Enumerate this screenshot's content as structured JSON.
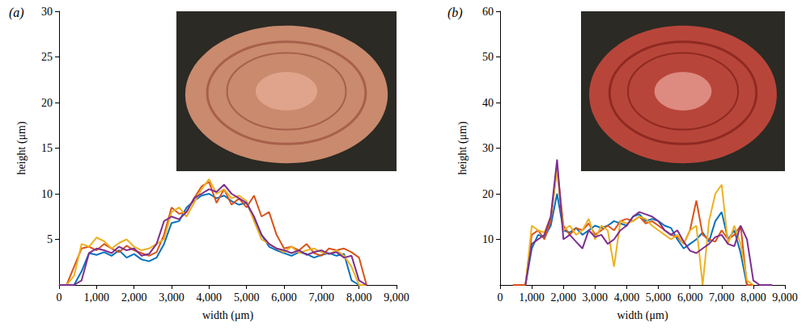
{
  "chart_data": [
    {
      "type": "line",
      "title": "(a)",
      "x_label": "width (μm)",
      "y_label": "height (μm)",
      "x": [
        0,
        200,
        400,
        600,
        800,
        1000,
        1200,
        1400,
        1600,
        1800,
        2000,
        2200,
        2400,
        2600,
        2800,
        3000,
        3200,
        3400,
        3600,
        3800,
        4000,
        4200,
        4400,
        4600,
        4800,
        5000,
        5200,
        5400,
        5600,
        5800,
        6000,
        6200,
        6400,
        6600,
        6800,
        7000,
        7200,
        7400,
        7600,
        7800,
        8000,
        8200
      ],
      "series": [
        {
          "color": "#0072BD",
          "values": [
            0,
            0,
            0,
            1.5,
            3.5,
            3.3,
            3.6,
            3.2,
            3.8,
            3.0,
            3.4,
            2.8,
            2.6,
            3.0,
            4.5,
            6.8,
            7.0,
            8.5,
            9.2,
            9.8,
            10.0,
            9.5,
            9.8,
            9.2,
            8.8,
            9.0,
            7.2,
            5.5,
            4.2,
            3.8,
            3.5,
            3.2,
            3.6,
            3.4,
            3.0,
            3.3,
            3.5,
            3.2,
            3.4,
            0.5,
            0,
            0
          ]
        },
        {
          "color": "#D95319",
          "values": [
            0,
            0,
            2.0,
            4.0,
            4.2,
            3.8,
            4.5,
            4.0,
            3.6,
            4.3,
            3.8,
            3.5,
            3.2,
            3.6,
            5.5,
            8.5,
            7.8,
            8.0,
            9.5,
            10.8,
            11.3,
            9.0,
            10.5,
            8.8,
            9.5,
            8.5,
            9.8,
            7.5,
            8.0,
            5.5,
            4.0,
            4.2,
            3.8,
            4.5,
            3.5,
            3.2,
            4.0,
            3.8,
            4.0,
            3.6,
            3.0,
            0
          ]
        },
        {
          "color": "#EDB120",
          "values": [
            0,
            0,
            1.0,
            4.5,
            4.2,
            5.2,
            4.8,
            4.0,
            4.6,
            5.0,
            4.2,
            3.8,
            4.0,
            4.5,
            5.0,
            8.0,
            8.5,
            7.5,
            9.0,
            10.5,
            11.6,
            10.0,
            10.5,
            9.5,
            9.8,
            9.2,
            7.0,
            5.0,
            4.5,
            4.0,
            3.6,
            4.2,
            3.5,
            3.8,
            4.0,
            3.6,
            3.4,
            3.8,
            3.2,
            2.0,
            0,
            0
          ]
        },
        {
          "color": "#7E2F8E",
          "values": [
            0,
            0,
            0,
            0.5,
            3.5,
            4.0,
            3.8,
            3.5,
            4.2,
            3.8,
            4.0,
            3.2,
            3.4,
            4.5,
            7.0,
            7.5,
            7.2,
            8.0,
            9.5,
            10.0,
            10.5,
            10.2,
            11.0,
            10.0,
            9.5,
            9.0,
            7.5,
            5.5,
            4.5,
            4.0,
            3.8,
            3.5,
            3.8,
            3.3,
            3.6,
            3.8,
            3.4,
            3.6,
            3.0,
            3.2,
            0.5,
            0
          ]
        }
      ],
      "xlim": [
        0,
        9000
      ],
      "xticks": [
        0,
        1000,
        2000,
        3000,
        4000,
        5000,
        6000,
        7000,
        8000,
        9000
      ],
      "ylim": [
        0,
        30
      ],
      "yticks": [
        5,
        10,
        15,
        20,
        25,
        30
      ],
      "grid": false
    },
    {
      "type": "line",
      "title": "(b)",
      "x_label": "width (μm)",
      "y_label": "height (μm)",
      "x": [
        0,
        200,
        400,
        600,
        800,
        1000,
        1200,
        1400,
        1600,
        1800,
        2000,
        2200,
        2400,
        2600,
        2800,
        3000,
        3200,
        3400,
        3600,
        3800,
        4000,
        4200,
        4400,
        4600,
        4800,
        5000,
        5200,
        5400,
        5600,
        5800,
        6000,
        6200,
        6400,
        6600,
        6800,
        7000,
        7200,
        7400,
        7600,
        7800,
        8000,
        8200,
        8400,
        8600
      ],
      "series": [
        {
          "color": "#0072BD",
          "values": [
            null,
            null,
            null,
            null,
            0,
            8,
            11,
            10.5,
            13,
            20,
            12,
            11.5,
            12.5,
            11,
            12,
            13,
            12.5,
            13,
            14,
            13.5,
            13,
            15,
            15.5,
            14,
            14.5,
            14,
            13,
            12.5,
            10,
            8,
            9,
            10,
            11.5,
            9.5,
            14,
            16,
            10,
            12,
            7,
            0,
            0,
            null,
            null,
            null
          ]
        },
        {
          "color": "#D95319",
          "values": [
            null,
            null,
            0,
            0,
            0,
            11,
            12,
            10,
            14,
            26,
            13,
            11,
            12.5,
            12,
            13.5,
            11,
            12,
            13,
            12,
            14,
            14.5,
            14,
            15,
            13.5,
            14,
            13,
            12,
            11,
            10.5,
            9,
            12,
            18.5,
            11,
            10,
            9.5,
            12,
            10,
            11,
            13,
            0,
            0,
            null,
            null,
            null
          ]
        },
        {
          "color": "#EDB120",
          "values": [
            null,
            null,
            null,
            null,
            0,
            13,
            12,
            11.5,
            15,
            25,
            12,
            13,
            11,
            12,
            14.5,
            10,
            13,
            12,
            4,
            14,
            13.5,
            14,
            15,
            14.5,
            13,
            12,
            11,
            10,
            11,
            9,
            12,
            13,
            0,
            14,
            20,
            22,
            9,
            13,
            9,
            1,
            0,
            null,
            null,
            null
          ]
        },
        {
          "color": "#7E2F8E",
          "values": [
            null,
            null,
            null,
            null,
            0,
            9,
            10,
            11,
            15,
            27.5,
            10,
            11,
            9.5,
            8,
            12,
            10.5,
            11,
            9,
            10,
            12,
            13,
            15,
            16,
            15.5,
            15,
            14,
            12,
            11,
            12,
            9.5,
            7.5,
            7,
            8,
            9,
            10.5,
            11,
            9,
            8.5,
            13,
            10,
            1,
            0,
            0,
            0
          ]
        }
      ],
      "xlim": [
        0,
        9000
      ],
      "xticks": [
        0,
        1000,
        2000,
        3000,
        4000,
        5000,
        6000,
        7000,
        8000,
        9000
      ],
      "ylim": [
        0,
        60
      ],
      "yticks": [
        10,
        20,
        30,
        40,
        50,
        60
      ],
      "grid": false
    }
  ]
}
